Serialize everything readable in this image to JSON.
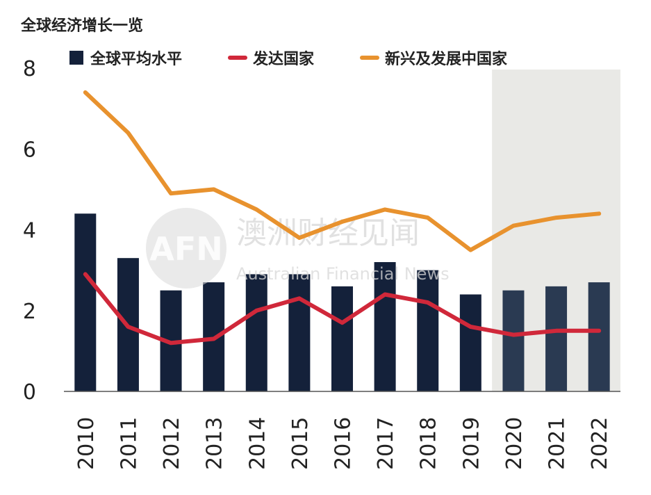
{
  "chart_data": {
    "type": "bar",
    "title": "全球经济增长一览",
    "categories": [
      "2010",
      "2011",
      "2012",
      "2013",
      "2014",
      "2015",
      "2016",
      "2017",
      "2018",
      "2019",
      "2020",
      "2021",
      "2022"
    ],
    "forecast_from": "2020",
    "ylim": [
      0,
      8
    ],
    "yticks": [
      0,
      2,
      4,
      6,
      8
    ],
    "grid": false,
    "legend_position": "top",
    "series": [
      {
        "name": "全球平均水平",
        "kind": "bar",
        "color": "#14213a",
        "forecast_color": "#2a3a52",
        "values": [
          4.4,
          3.3,
          2.5,
          2.7,
          2.9,
          2.9,
          2.6,
          3.2,
          3.0,
          2.4,
          2.5,
          2.6,
          2.7
        ]
      },
      {
        "name": "发达国家",
        "kind": "line",
        "color": "#d0283a",
        "values": [
          2.9,
          1.6,
          1.2,
          1.3,
          2.0,
          2.3,
          1.7,
          2.4,
          2.2,
          1.6,
          1.4,
          1.5,
          1.5
        ]
      },
      {
        "name": "新兴及发展中国家",
        "kind": "line",
        "color": "#e8922e",
        "values": [
          7.4,
          6.4,
          4.9,
          5.0,
          4.5,
          3.8,
          4.2,
          4.5,
          4.3,
          3.5,
          4.1,
          4.3,
          4.4
        ]
      }
    ]
  },
  "watermark": {
    "logo": "AFN",
    "name": "澳洲财经见闻",
    "subtitle": "Australian Financial News"
  },
  "colors": {
    "forecast_shade": "#e9e9e6",
    "axis": "#555555"
  }
}
